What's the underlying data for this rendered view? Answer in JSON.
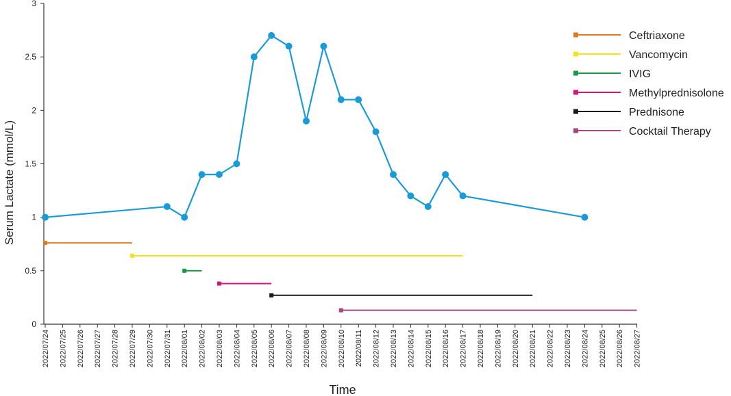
{
  "chart_data": {
    "type": "line",
    "xlabel": "Time",
    "ylabel": "Serum Lactate (mmol/L)",
    "ylim": [
      0,
      3
    ],
    "yticks": [
      0,
      0.5,
      1,
      1.5,
      2,
      2.5,
      3
    ],
    "xticks": [
      "2022/07/24",
      "2022/07/25",
      "2022/07/26",
      "2022/07/27",
      "2022/07/28",
      "2022/07/29",
      "2022/07/30",
      "2022/07/31",
      "2022/08/01",
      "2022/08/02",
      "2022/08/03",
      "2022/08/04",
      "2022/08/05",
      "2022/08/06",
      "2022/08/07",
      "2022/08/08",
      "2022/08/09",
      "2022/08/10",
      "2022/08/11",
      "2022/08/12",
      "2022/08/13",
      "2022/08/14",
      "2022/08/15",
      "2022/08/16",
      "2022/08/17",
      "2022/08/18",
      "2022/08/19",
      "2022/08/20",
      "2022/08/21",
      "2022/08/22",
      "2022/08/23",
      "2022/08/24",
      "2022/08/25",
      "2022/08/26",
      "2022/08/27"
    ],
    "grid": false,
    "legend_position": "top-right",
    "lactate": {
      "color": "#1a9bd7",
      "points": [
        {
          "x": "2022/07/24",
          "y": 1.0
        },
        {
          "x": "2022/07/31",
          "y": 1.1
        },
        {
          "x": "2022/08/01",
          "y": 1.0
        },
        {
          "x": "2022/08/02",
          "y": 1.4
        },
        {
          "x": "2022/08/03",
          "y": 1.4
        },
        {
          "x": "2022/08/04",
          "y": 1.5
        },
        {
          "x": "2022/08/05",
          "y": 2.5
        },
        {
          "x": "2022/08/06",
          "y": 2.7
        },
        {
          "x": "2022/08/07",
          "y": 2.6
        },
        {
          "x": "2022/08/08",
          "y": 1.9
        },
        {
          "x": "2022/08/09",
          "y": 2.6
        },
        {
          "x": "2022/08/10",
          "y": 2.1
        },
        {
          "x": "2022/08/11",
          "y": 2.1
        },
        {
          "x": "2022/08/12",
          "y": 1.8
        },
        {
          "x": "2022/08/13",
          "y": 1.4
        },
        {
          "x": "2022/08/14",
          "y": 1.2
        },
        {
          "x": "2022/08/15",
          "y": 1.1
        },
        {
          "x": "2022/08/16",
          "y": 1.4
        },
        {
          "x": "2022/08/17",
          "y": 1.2
        },
        {
          "x": "2022/08/24",
          "y": 1.0
        }
      ]
    },
    "series": [
      {
        "name": "Ceftriaxone",
        "color": "#e07b1f",
        "start": "2022/07/24",
        "end": "2022/07/29",
        "y": 0.76
      },
      {
        "name": "Vancomycin",
        "color": "#f2e41c",
        "start": "2022/07/29",
        "end": "2022/08/17",
        "y": 0.64
      },
      {
        "name": "IVIG",
        "color": "#1a9a45",
        "start": "2022/08/01",
        "end": "2022/08/02",
        "y": 0.5
      },
      {
        "name": "Methylprednisolone",
        "color": "#d4157a",
        "start": "2022/08/03",
        "end": "2022/08/06",
        "y": 0.38
      },
      {
        "name": "Prednisone",
        "color": "#1a1a1a",
        "start": "2022/08/06",
        "end": "2022/08/21",
        "y": 0.27
      },
      {
        "name": "Cocktail Therapy",
        "color": "#a8467f",
        "start": "2022/08/10",
        "end": "2022/08/27",
        "y": 0.13
      }
    ]
  }
}
